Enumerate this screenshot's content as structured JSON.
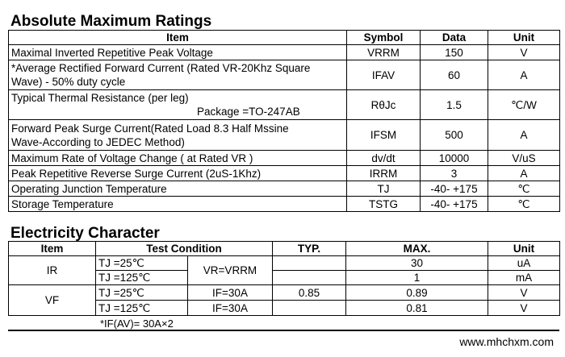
{
  "amr": {
    "title": "Absolute Maximum Ratings",
    "headers": [
      "Item",
      "Symbol",
      "Data",
      "Unit"
    ],
    "rows": [
      {
        "item": "Maximal Inverted Repetitive  Peak Voltage",
        "symbol": "VRRM",
        "data": "150",
        "unit": "V"
      },
      {
        "item": "*Average Rectified Forward Current (Rated VR-20Khz Square",
        "item2": "Wave) - 50% duty cycle",
        "symbol": "IFAV",
        "data": "60",
        "unit": "A"
      },
      {
        "item": "Typical Thermal Resistance (per leg)",
        "item2": "Package =TO-247AB",
        "symbol": "RθJc",
        "data": "1.5",
        "unit": "℃/W"
      },
      {
        "item": "Forward Peak Surge Current(Rated Load 8.3 Half Mssine",
        "item2": "Wave-According to JEDEC Method)",
        "symbol": "IFSM",
        "data": "500",
        "unit": "A"
      },
      {
        "item": "Maximum Rate of Voltage Change ( at Rated VR )",
        "symbol": "dv/dt",
        "data": "10000",
        "unit": "V/uS"
      },
      {
        "item": "Peak Repetitive Reverse Surge Current (2uS-1Khz)",
        "symbol": "IRRM",
        "data": "3",
        "unit": "A"
      },
      {
        "item": "Operating Junction Temperature",
        "symbol": "TJ",
        "data": "-40- +175",
        "unit": "℃"
      },
      {
        "item": "Storage Temperature",
        "symbol": "TSTG",
        "data": "-40- +175",
        "unit": "℃"
      }
    ]
  },
  "ec": {
    "title": "Electricity Character",
    "headers": [
      "Item",
      "Test  Condition",
      "TYP.",
      "MAX.",
      "Unit"
    ],
    "ir": {
      "item": "IR",
      "cond": "VR=VRRM",
      "rows": [
        {
          "tj": "TJ =25℃",
          "max": "30",
          "unit": "uA"
        },
        {
          "tj": "TJ =125℃",
          "max": "1",
          "unit": "mA"
        }
      ]
    },
    "vf": {
      "item": "VF",
      "rows": [
        {
          "tj": "TJ =25℃",
          "cond": "IF=30A",
          "typ": "0.85",
          "max": "0.89",
          "unit": "V"
        },
        {
          "tj": "TJ =125℃",
          "cond": "IF=30A",
          "typ": "",
          "max": "0.81",
          "unit": "V"
        }
      ]
    },
    "footnote": "*IF(AV)= 30A×2"
  },
  "website": "www.mhchxm.com"
}
